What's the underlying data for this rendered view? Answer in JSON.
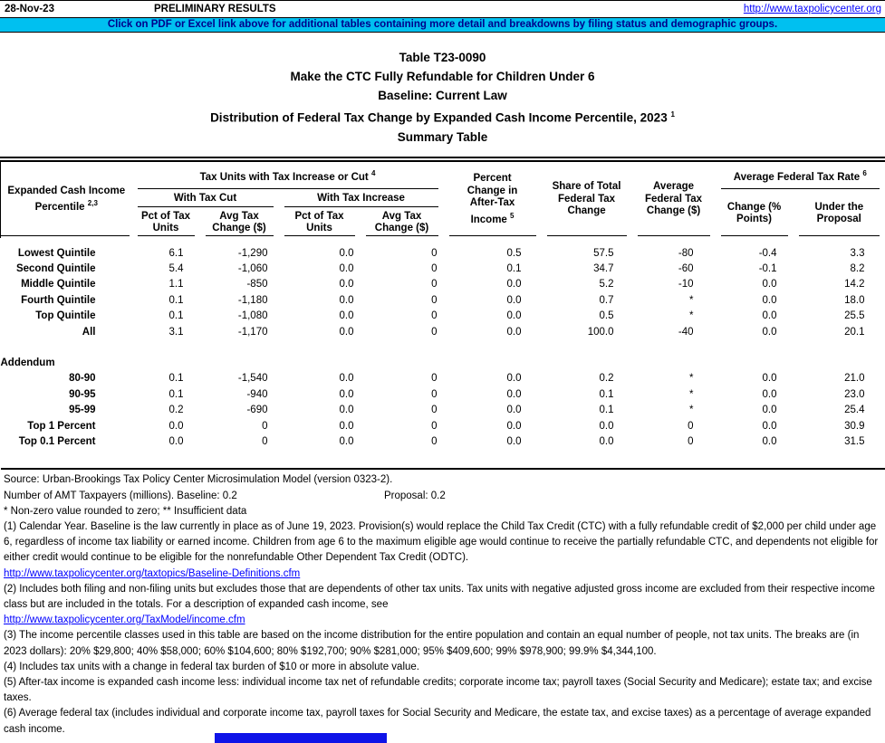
{
  "colors": {
    "banner_bg": "#00C0F0",
    "banner_text": "#00008B",
    "link_blue": "#0000FF",
    "bottom_bar_blue": "#0F14E8"
  },
  "topbar": {
    "date": "28-Nov-23",
    "preliminary": "PRELIMINARY RESULTS",
    "site_url": "http://www.taxpolicycenter.org",
    "banner": "Click on PDF or Excel link above for additional tables containing more detail and breakdowns by filing status and demographic groups."
  },
  "title": {
    "line1": "Table T23-0090",
    "line2": "Make the CTC Fully Refundable for Children Under 6",
    "line3": "Baseline: Current Law",
    "line4": "Distribution of Federal Tax Change by Expanded Cash Income Percentile, 2023",
    "line4_sup": "1",
    "line5": "Summary Table"
  },
  "table": {
    "headers": {
      "col1": "Expanded Cash Income Percentile",
      "col1_sup": "2,3",
      "group_units": "Tax Units with Tax Increase or Cut",
      "group_units_sup": "4",
      "with_cut": "With Tax Cut",
      "with_increase": "With Tax Increase",
      "pct_units": "Pct of Tax Units",
      "avg_change": "Avg Tax Change ($)",
      "pct_after_tax": "Percent Change in After-Tax Income",
      "pct_after_tax_sup": "5",
      "share_total": "Share of Total Federal Tax Change",
      "avg_fed_change": "Average Federal Tax Change ($)",
      "avg_rate": "Average Federal Tax Rate",
      "avg_rate_sup": "6",
      "rate_change": "Change (% Points)",
      "rate_under": "Under the Proposal"
    },
    "rows": [
      {
        "label": "Lowest Quintile",
        "cells": [
          "6.1",
          "-1,290",
          "0.0",
          "0",
          "0.5",
          "57.5",
          "-80",
          "-0.4",
          "3.3"
        ]
      },
      {
        "label": "Second Quintile",
        "cells": [
          "5.4",
          "-1,060",
          "0.0",
          "0",
          "0.1",
          "34.7",
          "-60",
          "-0.1",
          "8.2"
        ]
      },
      {
        "label": "Middle Quintile",
        "cells": [
          "1.1",
          "-850",
          "0.0",
          "0",
          "0.0",
          "5.2",
          "-10",
          "0.0",
          "14.2"
        ]
      },
      {
        "label": "Fourth Quintile",
        "cells": [
          "0.1",
          "-1,180",
          "0.0",
          "0",
          "0.0",
          "0.7",
          "*",
          "0.0",
          "18.0"
        ]
      },
      {
        "label": "Top Quintile",
        "cells": [
          "0.1",
          "-1,080",
          "0.0",
          "0",
          "0.0",
          "0.5",
          "*",
          "0.0",
          "25.5"
        ]
      },
      {
        "label": "All",
        "cells": [
          "3.1",
          "-1,170",
          "0.0",
          "0",
          "0.0",
          "100.0",
          "-40",
          "0.0",
          "20.1"
        ]
      }
    ],
    "addendum_label": "Addendum",
    "addendum_rows": [
      {
        "label": "80-90",
        "cells": [
          "0.1",
          "-1,540",
          "0.0",
          "0",
          "0.0",
          "0.2",
          "*",
          "0.0",
          "21.0"
        ]
      },
      {
        "label": "90-95",
        "cells": [
          "0.1",
          "-940",
          "0.0",
          "0",
          "0.0",
          "0.1",
          "*",
          "0.0",
          "23.0"
        ]
      },
      {
        "label": "95-99",
        "cells": [
          "0.2",
          "-690",
          "0.0",
          "0",
          "0.0",
          "0.1",
          "*",
          "0.0",
          "25.4"
        ]
      },
      {
        "label": "Top 1 Percent",
        "cells": [
          "0.0",
          "0",
          "0.0",
          "0",
          "0.0",
          "0.0",
          "0",
          "0.0",
          "30.9"
        ]
      },
      {
        "label": "Top 0.1 Percent",
        "cells": [
          "0.0",
          "0",
          "0.0",
          "0",
          "0.0",
          "0.0",
          "0",
          "0.0",
          "31.5"
        ]
      }
    ]
  },
  "footer": {
    "source": "Source: Urban-Brookings Tax Policy Center Microsimulation Model (version 0323-2).",
    "amt_baseline": "Number of AMT Taxpayers (millions).  Baseline: 0.2",
    "amt_proposal": "Proposal: 0.2",
    "asterisks": "* Non-zero value rounded to zero; ** Insufficient data",
    "footnotes": [
      {
        "type": "text",
        "text": "(1) Calendar Year. Baseline is the law currently in place as of June 19, 2023. Provision(s) would replace the Child Tax Credit (CTC) with a fully refundable credit of $2,000 per child under age 6, regardless of income tax liability or earned income. Children from age 6 to the maximum eligible age would continue to receive the partially refundable CTC, and dependents not eligible for either credit would continue to be eligible for the nonrefundable Other Dependent Tax Credit (ODTC)."
      },
      {
        "type": "link",
        "text": "http://www.taxpolicycenter.org/taxtopics/Baseline-Definitions.cfm"
      },
      {
        "type": "text",
        "text": "(2) Includes both filing and non-filing units but excludes those that are dependents of other tax units. Tax units with negative adjusted gross income are excluded from their respective income class but are included in the totals. For a description of expanded cash income, see"
      },
      {
        "type": "link",
        "text": "http://www.taxpolicycenter.org/TaxModel/income.cfm"
      },
      {
        "type": "text",
        "text": "(3) The income percentile classes used in this table are based on the income distribution for the entire population and contain an equal number of people, not tax units. The breaks are (in 2023 dollars): 20% $29,800; 40% $58,000; 60% $104,600; 80% $192,700; 90% $281,000; 95% $409,600; 99% $978,900; 99.9% $4,344,100."
      },
      {
        "type": "text",
        "text": "(4) Includes tax units with a change in federal tax burden of $10 or more in absolute value."
      },
      {
        "type": "text",
        "text": "(5) After-tax income is expanded cash income less: individual income tax net of refundable credits; corporate income tax; payroll taxes (Social Security and Medicare); estate tax; and excise taxes."
      },
      {
        "type": "text",
        "text": "(6) Average federal tax (includes individual and corporate income tax, payroll taxes for Social Security and Medicare, the estate tax, and excise taxes) as a percentage of average expanded cash income."
      }
    ]
  }
}
